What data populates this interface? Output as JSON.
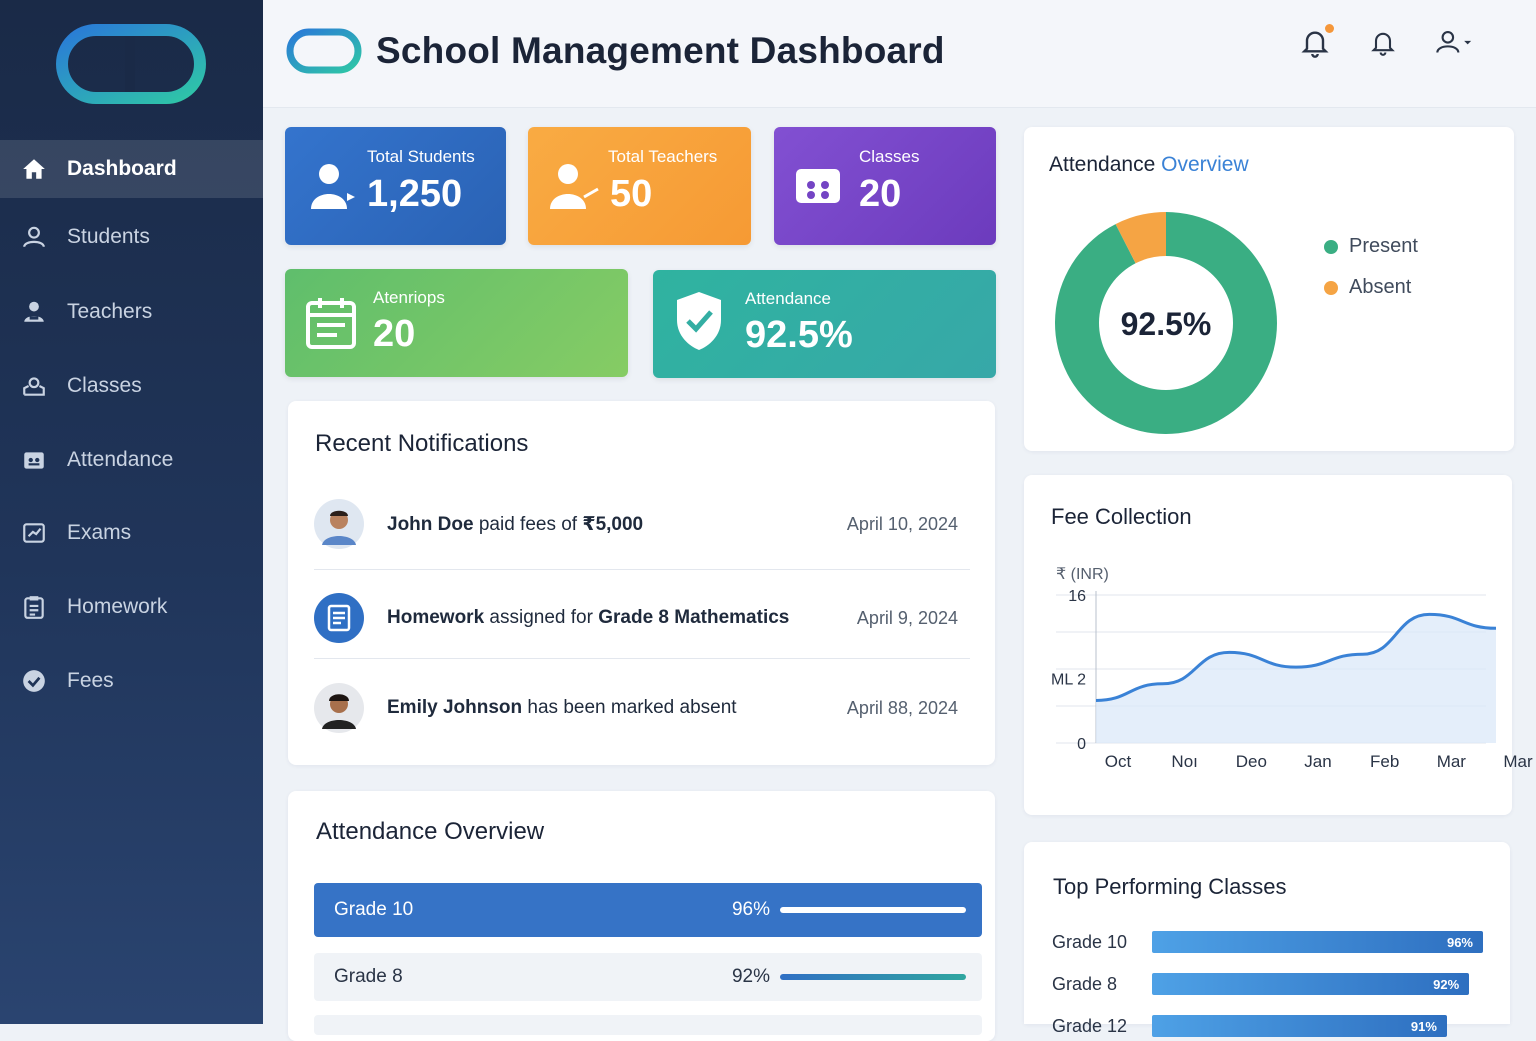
{
  "header": {
    "title": "School Management Dashboard"
  },
  "sidebar": {
    "items": [
      {
        "label": "Dashboard",
        "icon": "home-icon",
        "active": true
      },
      {
        "label": "Students",
        "icon": "user-icon"
      },
      {
        "label": "Teachers",
        "icon": "teacher-icon"
      },
      {
        "label": "Classes",
        "icon": "classroom-icon"
      },
      {
        "label": "Attendance",
        "icon": "attendance-icon"
      },
      {
        "label": "Exams",
        "icon": "exam-icon"
      },
      {
        "label": "Homework",
        "icon": "clipboard-icon"
      },
      {
        "label": "Fees",
        "icon": "check-circle-icon"
      }
    ]
  },
  "stats": {
    "students": {
      "label": "Total Students",
      "value": "1,250"
    },
    "teachers": {
      "label": "Total Teachers",
      "value": "50"
    },
    "classes": {
      "label": "Classes",
      "value": "20"
    },
    "attendings": {
      "label": "Atenriops",
      "value": "20"
    },
    "attendance": {
      "label": "Attendance",
      "value": "92.5%"
    }
  },
  "notifications": {
    "title": "Recent Notifications",
    "items": [
      {
        "bold": "John Doe",
        "text": " paid fees of ",
        "bold2": "₹5,000",
        "text2": "",
        "date": "April 10, 2024"
      },
      {
        "bold": "Homework",
        "text": " assigned for ",
        "bold2": "Grade 8 Mathematics",
        "text2": "",
        "date": "April 9, 2024"
      },
      {
        "bold": "Emily Johnson",
        "text": " has been marked absent",
        "bold2": "",
        "text2": "",
        "date": "April 88, 2024"
      }
    ]
  },
  "attendance_overview_list": {
    "title": "Attendance Overview",
    "rows": [
      {
        "name": "Grade 10",
        "pct": "96%",
        "value": 96
      },
      {
        "name": "Grade 8",
        "pct": "92%",
        "value": 92
      }
    ]
  },
  "attendance_donut": {
    "title_a": "Attendance",
    "title_b": "Overview",
    "center_label": "92.5%",
    "legend": [
      {
        "label": "Present",
        "color": "#3aae83"
      },
      {
        "label": "Absent",
        "color": "#f5a444"
      }
    ]
  },
  "fee_collection": {
    "title": "Fee Collection"
  },
  "top_classes": {
    "title": "Top Performing Classes",
    "rows": [
      {
        "name": "Grade 10",
        "pct": "96%",
        "value": 96
      },
      {
        "name": "Grade 8",
        "pct": "92%",
        "value": 92
      },
      {
        "name": "Grade 12",
        "pct": "91%",
        "value": 91
      }
    ]
  },
  "colors": {
    "blue": "#2f6fc4",
    "orange": "#f7a23c",
    "purple": "#7a45c9",
    "green": "#6cc56a",
    "teal": "#2fb3a0",
    "accent": "#3a82d6"
  },
  "chart_data": [
    {
      "type": "pie",
      "title": "",
      "categories": [
        "Present",
        "Absent"
      ],
      "values": [
        92.5,
        7.5
      ],
      "center_label": "92.5%",
      "legend": "right"
    },
    {
      "type": "area",
      "title": "Fee Collection",
      "ylabel": "₹ (INR)",
      "xlabel": "",
      "categories": [
        "Oct",
        "Noı",
        "Deo",
        "Jan",
        "Feb",
        "Mar",
        "Mar"
      ],
      "y_tick_labels": [
        "16",
        "ML 2",
        "0"
      ],
      "x": [
        0,
        1,
        2,
        3,
        4,
        5,
        6
      ],
      "values": [
        4.6,
        6.4,
        9.8,
        8.2,
        9.6,
        13.9,
        12.4
      ],
      "ylim": [
        0,
        16
      ],
      "grid": true
    },
    {
      "type": "bar",
      "title": "Top Performing Classes",
      "categories": [
        "Grade 10",
        "Grade 8",
        "Grade 12"
      ],
      "values": [
        96,
        92,
        91
      ],
      "orientation": "horizontal"
    }
  ]
}
